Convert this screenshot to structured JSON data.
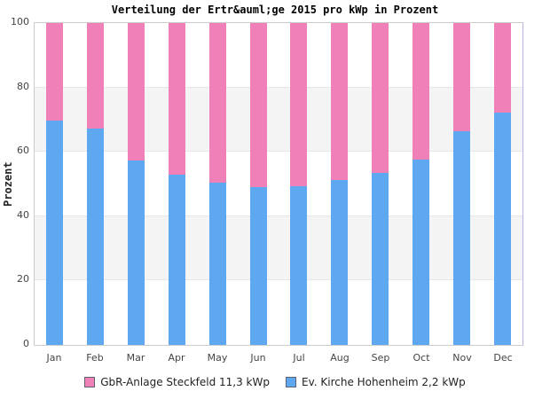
{
  "chart_data": {
    "type": "bar",
    "stacked": true,
    "title": "Verteilung der Ertr&auml;ge 2015 pro kWp in Prozent",
    "ylabel": "Prozent",
    "xlabel": "",
    "ylim": [
      0,
      100
    ],
    "yticks": [
      0,
      20,
      40,
      60,
      80,
      100
    ],
    "grid": true,
    "band_color": "#f4f4f4",
    "gridline_color": "#e6e6e6",
    "legend_position": "bottom",
    "categories": [
      "Jan",
      "Feb",
      "Mar",
      "Apr",
      "May",
      "Jun",
      "Jul",
      "Aug",
      "Sep",
      "Oct",
      "Nov",
      "Dec"
    ],
    "series": [
      {
        "name": "GbR-Anlage Steckfeld 11,3 kWp",
        "color": "#f080b8",
        "position": "top",
        "values": [
          30.4,
          32.7,
          42.7,
          47.1,
          49.7,
          51.0,
          50.7,
          48.8,
          46.6,
          42.5,
          33.7,
          27.7
        ]
      },
      {
        "name": "Ev. Kirche Hohenheim 2,2 kWp",
        "color": "#5da8f1",
        "position": "bottom",
        "values": [
          69.6,
          67.3,
          57.3,
          52.9,
          50.3,
          49.0,
          49.3,
          51.2,
          53.4,
          57.5,
          66.3,
          72.3
        ]
      }
    ]
  }
}
